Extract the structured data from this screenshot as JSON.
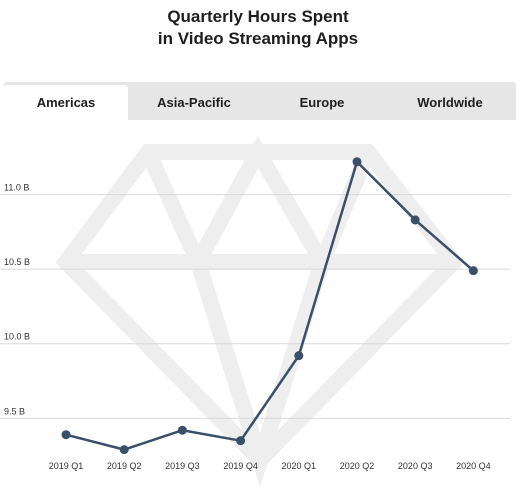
{
  "title": {
    "line1": "Quarterly Hours Spent",
    "line2": "in Video Streaming Apps"
  },
  "tabs": [
    {
      "label": "Americas",
      "active": true
    },
    {
      "label": "Asia-Pacific",
      "active": false
    },
    {
      "label": "Europe",
      "active": false
    },
    {
      "label": "Worldwide",
      "active": false
    }
  ],
  "colors": {
    "line": "#3a5068",
    "grid": "#d9d9d9",
    "watermark": "#eeeeee"
  },
  "watermark_icon": "diamond-watermark-icon",
  "chart_data": {
    "type": "line",
    "title": "Quarterly Hours Spent in Video Streaming Apps",
    "categories": [
      "2019 Q1",
      "2019 Q2",
      "2019 Q3",
      "2019 Q4",
      "2020 Q1",
      "2020 Q2",
      "2020 Q3",
      "2020 Q4"
    ],
    "series": [
      {
        "values": [
          9.39,
          9.29,
          9.42,
          9.35,
          9.92,
          11.22,
          10.83,
          10.49
        ]
      }
    ],
    "yticks": [
      {
        "value": 9.5,
        "label": "9.5 B"
      },
      {
        "value": 10.0,
        "label": "10.0 B"
      },
      {
        "value": 10.5,
        "label": "10.5 B"
      },
      {
        "value": 11.0,
        "label": "11.0 B"
      }
    ],
    "ylim": [
      9.14,
      11.5
    ],
    "grid": true,
    "xlabel": "",
    "ylabel": ""
  }
}
